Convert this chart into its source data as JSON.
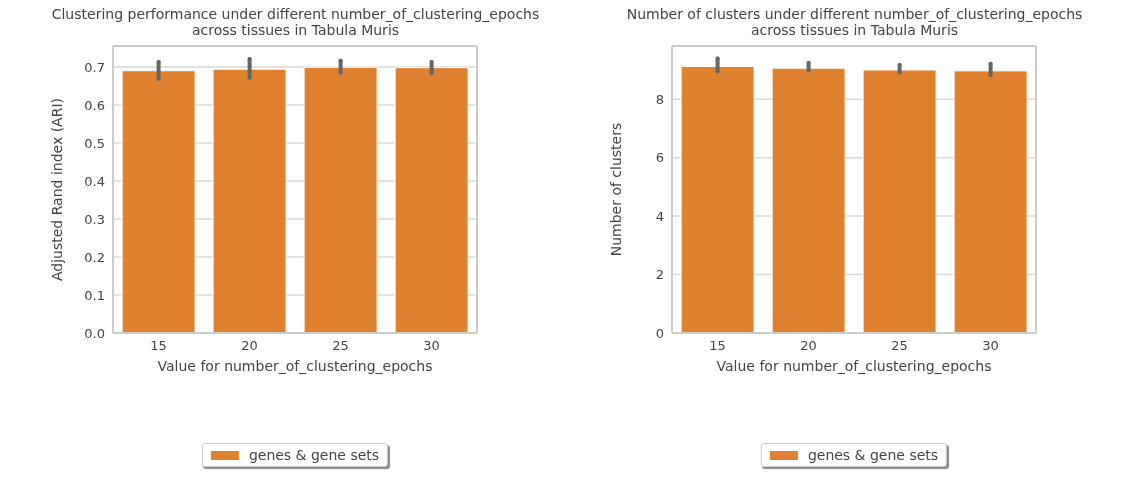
{
  "chart_data": [
    {
      "type": "bar",
      "title": "Clustering performance under different number_of_clustering_epochs\nacross tissues in Tabula Muris",
      "xlabel": "Value for number_of_clustering_epochs",
      "ylabel": "Adjusted Rand index (ARI)",
      "categories": [
        "15",
        "20",
        "25",
        "30"
      ],
      "series": [
        {
          "name": "genes & gene sets",
          "color": "#e08130",
          "values": [
            0.69,
            0.694,
            0.699,
            0.698
          ],
          "errors": [
            [
              0.669,
              0.713
            ],
            [
              0.672,
              0.721
            ],
            [
              0.685,
              0.716
            ],
            [
              0.684,
              0.713
            ]
          ]
        }
      ],
      "ylim": [
        0,
        0.755
      ],
      "yticks": [
        {
          "value": 0,
          "label": "0.0"
        },
        0.1,
        0.2,
        0.3,
        0.4,
        0.5,
        0.6,
        0.7
      ],
      "grid": "y",
      "legend": "bottom"
    },
    {
      "type": "bar",
      "title": "Number of clusters under different number_of_clustering_epochs\nacross tissues in Tabula Muris",
      "xlabel": "Value for number_of_clustering_epochs",
      "ylabel": "Number of clusters",
      "categories": [
        "15",
        "20",
        "25",
        "30"
      ],
      "series": [
        {
          "name": "genes & gene sets",
          "color": "#e08130",
          "values": [
            9.12,
            9.06,
            9.0,
            8.97
          ],
          "errors": [
            [
              8.95,
              9.39
            ],
            [
              8.99,
              9.24
            ],
            [
              8.91,
              9.17
            ],
            [
              8.83,
              9.21
            ]
          ]
        }
      ],
      "ylim": [
        0,
        9.82
      ],
      "yticks": [
        0,
        2,
        4,
        6,
        8
      ],
      "grid": "y",
      "legend": "bottom"
    }
  ]
}
